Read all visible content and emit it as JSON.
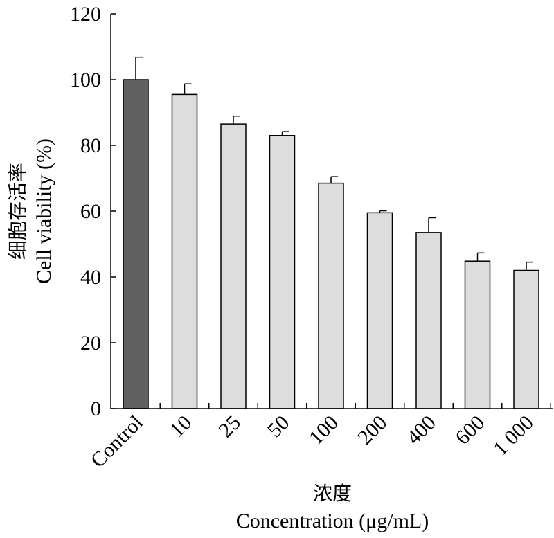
{
  "chart_data": {
    "type": "bar",
    "categories": [
      "Control",
      "10",
      "25",
      "50",
      "100",
      "200",
      "400",
      "600",
      "1 000"
    ],
    "values": [
      100,
      95.5,
      86.5,
      83,
      68.5,
      59.5,
      53.5,
      44.8,
      42
    ],
    "errors": [
      6.8,
      3.2,
      2.4,
      1.2,
      2.0,
      0.6,
      4.5,
      2.5,
      2.5
    ],
    "bar_colors": [
      "#606060",
      "#dddddd",
      "#dddddd",
      "#dddddd",
      "#dddddd",
      "#dddddd",
      "#dddddd",
      "#dddddd",
      "#dddddd"
    ],
    "ylim": [
      0,
      120
    ],
    "yticks": [
      "0",
      "20",
      "40",
      "60",
      "80",
      "100",
      "120"
    ],
    "ylabel_cn": "细胞存活率",
    "ylabel_en": "Cell viability (%)",
    "xlabel_cn": "浓度",
    "xlabel_en": "Concentration (μg/mL)",
    "grid": false
  }
}
